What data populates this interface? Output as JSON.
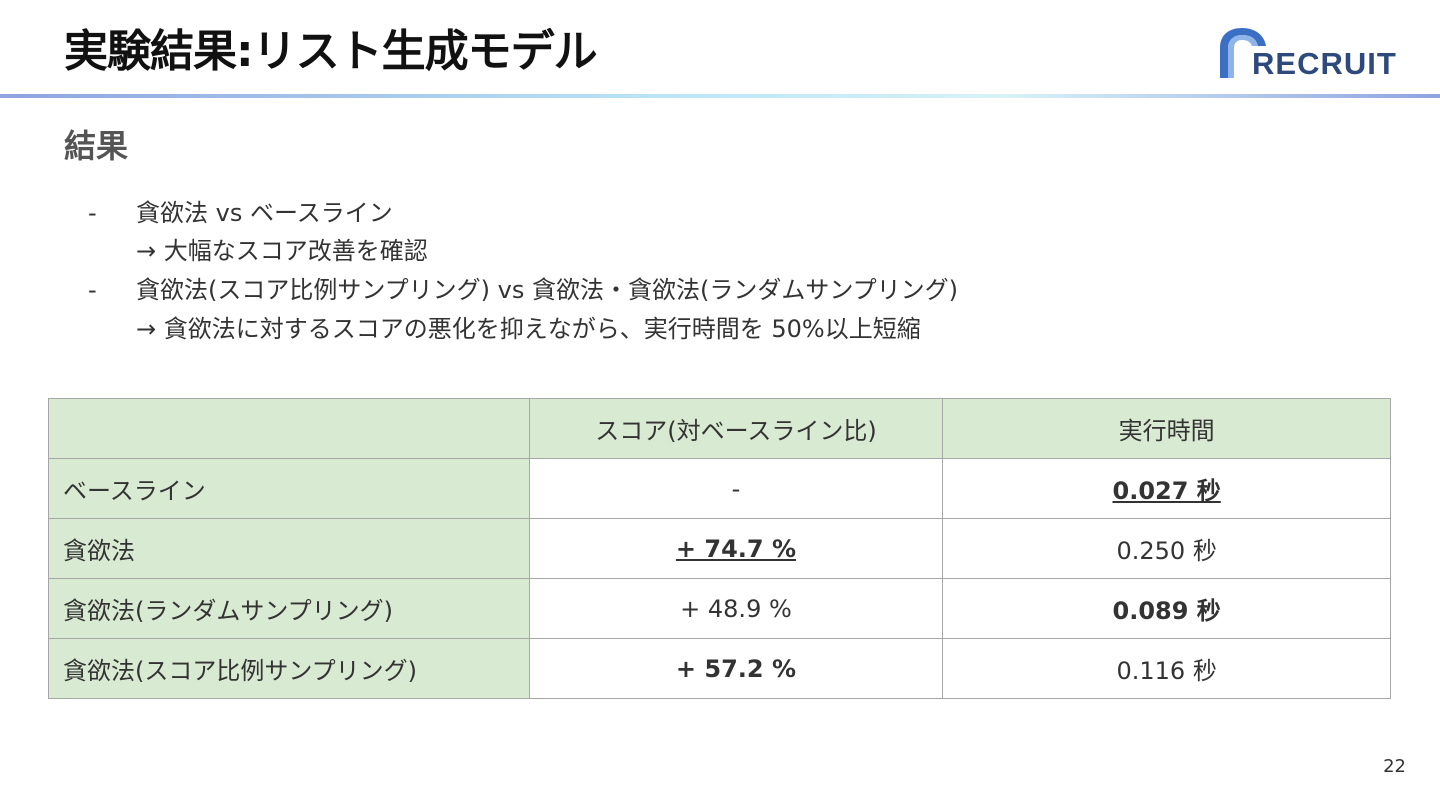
{
  "slide": {
    "title": "実験結果:リスト生成モデル",
    "logo_text": "RECRUIT",
    "section_heading": "結果",
    "page_number": "22"
  },
  "bullets": [
    {
      "marker": "-",
      "text": "貪欲法 vs ベースライン"
    },
    {
      "marker": "",
      "text": "→ 大幅なスコア改善を確認"
    },
    {
      "marker": "-",
      "text": "貪欲法(スコア比例サンプリング) vs 貪欲法・貪欲法(ランダムサンプリング)"
    },
    {
      "marker": "",
      "text": "→ 貪欲法に対するスコアの悪化を抑えながら、実行時間を 50%以上短縮"
    }
  ],
  "table": {
    "headers": [
      "",
      "スコア(対ベースライン比)",
      "実行時間"
    ],
    "rows": [
      {
        "label": "ベースライン",
        "score": "-",
        "time": "0.027 秒"
      },
      {
        "label": "貪欲法",
        "score": "+ 74.7 %",
        "time": "0.250 秒"
      },
      {
        "label": "貪欲法(ランダムサンプリング)",
        "score": "+ 48.9 %",
        "time": "0.089 秒"
      },
      {
        "label": "貪欲法(スコア比例サンプリング)",
        "score": "+ 57.2 %",
        "time": "0.116 秒"
      }
    ]
  },
  "colors": {
    "header_fill": "#d9ead3",
    "logo_blue": "#2e4a7d",
    "rule_gradient_start": "#8fa3e0",
    "rule_gradient_mid": "#b9e4f5"
  }
}
